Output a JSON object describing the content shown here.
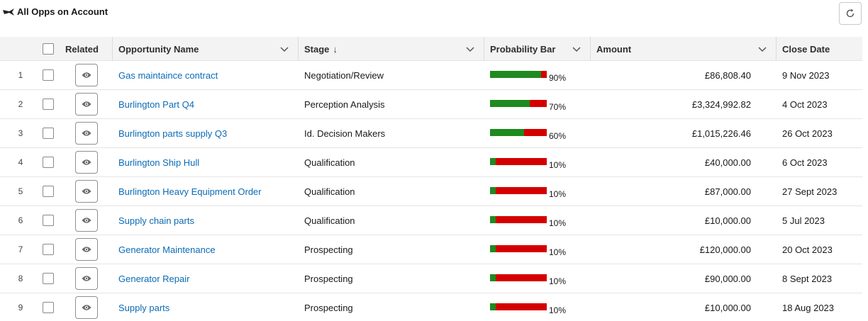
{
  "header": {
    "title": "All Opps on Account"
  },
  "columns": {
    "related": "Related",
    "name": "Opportunity Name",
    "stage": "Stage",
    "stage_sort": "↓",
    "probability": "Probability Bar",
    "amount": "Amount",
    "close_date": "Close Date"
  },
  "colors": {
    "link": "#0b6bb5",
    "bar_filled": "#1f8a1f",
    "bar_empty": "#d40000"
  },
  "rows": [
    {
      "num": "1",
      "name": "Gas maintaince contract",
      "stage": "Negotiation/Review",
      "prob": 0.9,
      "pct": "90%",
      "amount": "£86,808.40",
      "close": "9 Nov 2023"
    },
    {
      "num": "2",
      "name": "Burlington Part Q4",
      "stage": "Perception Analysis",
      "prob": 0.7,
      "pct": "70%",
      "amount": "£3,324,992.82",
      "close": "4 Oct 2023"
    },
    {
      "num": "3",
      "name": "Burlington parts supply Q3",
      "stage": "Id. Decision Makers",
      "prob": 0.6,
      "pct": "60%",
      "amount": "£1,015,226.46",
      "close": "26 Oct 2023"
    },
    {
      "num": "4",
      "name": "Burlington Ship Hull",
      "stage": "Qualification",
      "prob": 0.1,
      "pct": "10%",
      "amount": "£40,000.00",
      "close": "6 Oct 2023"
    },
    {
      "num": "5",
      "name": "Burlington Heavy Equipment Order",
      "stage": "Qualification",
      "prob": 0.1,
      "pct": "10%",
      "amount": "£87,000.00",
      "close": "27 Sept 2023"
    },
    {
      "num": "6",
      "name": "Supply chain parts",
      "stage": "Qualification",
      "prob": 0.1,
      "pct": "10%",
      "amount": "£10,000.00",
      "close": "5 Jul 2023"
    },
    {
      "num": "7",
      "name": "Generator Maintenance",
      "stage": "Prospecting",
      "prob": 0.1,
      "pct": "10%",
      "amount": "£120,000.00",
      "close": "20 Oct 2023"
    },
    {
      "num": "8",
      "name": "Generator Repair",
      "stage": "Prospecting",
      "prob": 0.1,
      "pct": "10%",
      "amount": "£90,000.00",
      "close": "8 Sept 2023"
    },
    {
      "num": "9",
      "name": "Supply parts",
      "stage": "Prospecting",
      "prob": 0.1,
      "pct": "10%",
      "amount": "£10,000.00",
      "close": "18 Aug 2023"
    }
  ]
}
